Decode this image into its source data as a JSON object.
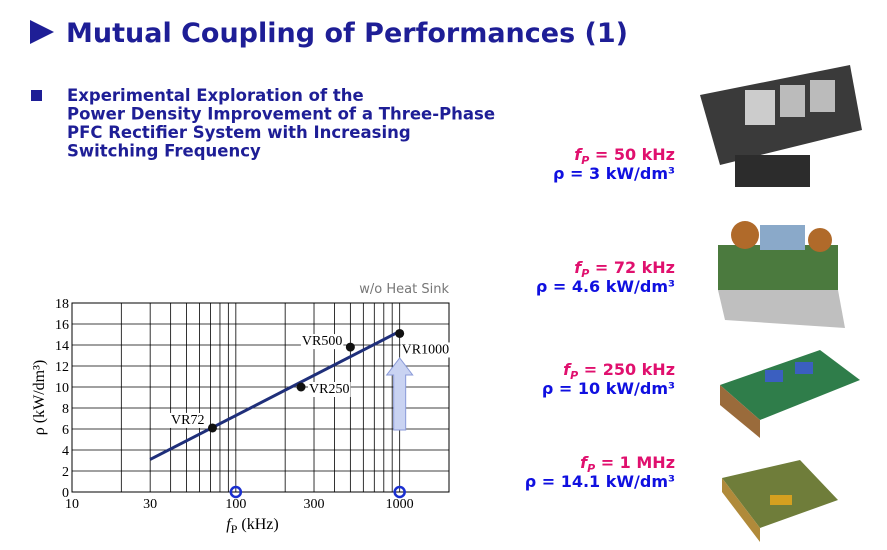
{
  "title": "Mutual Coupling of Performances (1)",
  "bullet_lines": [
    "Experimental Exploration of the",
    "Power Density Improvement of a Three-Phase",
    "PFC Rectifier System with Increasing",
    "Switching Frequency"
  ],
  "chart_data": {
    "type": "scatter",
    "x_label": {
      "symbol": "f",
      "sub": "P",
      "unit": " (kHz)"
    },
    "y_label": "ρ (kW/dm³)",
    "annotation": "w/o Heat Sink",
    "xscale": "log",
    "xlim": [
      10,
      2000
    ],
    "xticks": [
      10,
      30,
      100,
      300,
      1000
    ],
    "xgrid": [
      20,
      30,
      40,
      50,
      60,
      70,
      80,
      90,
      100,
      200,
      300,
      400,
      500,
      600,
      700,
      800,
      900,
      1000
    ],
    "ylim": [
      0,
      18
    ],
    "yticks": [
      0,
      2,
      4,
      6,
      8,
      10,
      12,
      14,
      16,
      18
    ],
    "grid": true,
    "points": {
      "x": [
        72,
        250,
        500,
        1000
      ],
      "values": [
        6.1,
        10,
        13.8,
        15.1
      ],
      "labels": [
        "VR72",
        "VR250",
        "VR500",
        "VR1000"
      ],
      "color": "#111111"
    },
    "fit": {
      "x": [
        30,
        1000
      ],
      "values": [
        3.1,
        15.3
      ],
      "color": "#1f2f7a"
    },
    "markers": {
      "x": [
        100,
        1000
      ],
      "values": [
        0,
        0
      ],
      "color": "#1a2fd0"
    }
  },
  "designs": [
    {
      "symbol": "f",
      "sub": "P",
      "freq": " = 50 kHz",
      "rho": "ρ = 3 kW/dm³"
    },
    {
      "symbol": "f",
      "sub": "P",
      "freq": " = 72 kHz",
      "rho": "ρ = 4.6 kW/dm³"
    },
    {
      "symbol": "f",
      "sub": "P",
      "freq": " = 250 kHz",
      "rho": "ρ = 10 kW/dm³"
    },
    {
      "symbol": "f",
      "sub": "P",
      "freq": " = 1 MHz",
      "rho": "ρ = 14.1 kW/dm³"
    }
  ]
}
